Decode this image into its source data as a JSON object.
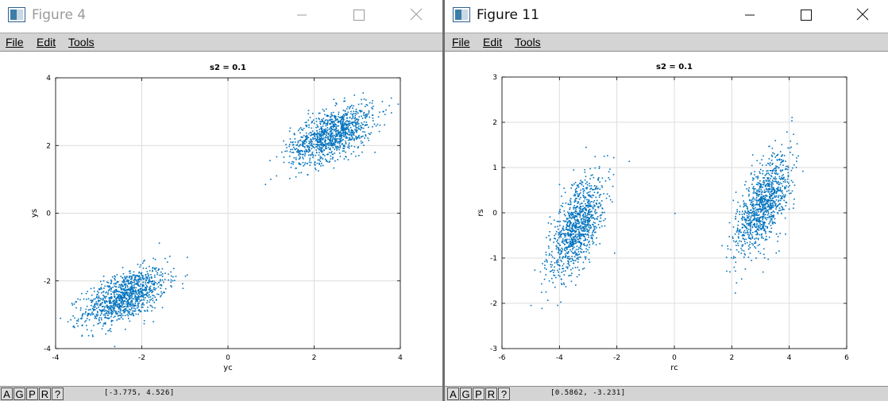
{
  "windows": [
    {
      "title": "Figure 4",
      "menu": [
        "File",
        "Edit",
        "Tools"
      ],
      "status": {
        "buttons": [
          "A",
          "G",
          "P",
          "R",
          "?"
        ],
        "coords": "[-3.775, 4.526]"
      },
      "chart_data": {
        "type": "scatter",
        "title": "s2 = 0.1",
        "xlabel": "yc",
        "ylabel": "ys",
        "xlim": [
          -4,
          4
        ],
        "ylim": [
          -4,
          4
        ],
        "xticks": [
          "-4",
          "-2",
          "0",
          "2",
          "4"
        ],
        "yticks": [
          "-4",
          "-2",
          "0",
          "2",
          "4"
        ],
        "grid": true,
        "color": "#0072bd",
        "clusters": [
          {
            "center_x": -2.4,
            "center_y": -2.45,
            "spread_x": 0.48,
            "spread_y": 0.42,
            "correlation": 0.55,
            "count": 1100
          },
          {
            "center_x": 2.4,
            "center_y": 2.35,
            "spread_x": 0.48,
            "spread_y": 0.42,
            "correlation": 0.55,
            "count": 1100
          }
        ]
      }
    },
    {
      "title": "Figure 11",
      "menu": [
        "File",
        "Edit",
        "Tools"
      ],
      "status": {
        "buttons": [
          "A",
          "G",
          "P",
          "R",
          "?"
        ],
        "coords": "[0.5862, -3.231]"
      },
      "chart_data": {
        "type": "scatter",
        "title": "s2 = 0.1",
        "xlabel": "rc",
        "ylabel": "rs",
        "xlim": [
          -6,
          6
        ],
        "ylim": [
          -3,
          3
        ],
        "xticks": [
          "-6",
          "-4",
          "-2",
          "0",
          "2",
          "4",
          "6"
        ],
        "yticks": [
          "-3",
          "-2",
          "-1",
          "0",
          "1",
          "2",
          "3"
        ],
        "grid": true,
        "color": "#0072bd",
        "clusters": [
          {
            "center_x": -3.4,
            "center_y": -0.3,
            "spread_x": 0.48,
            "spread_y": 0.55,
            "correlation": 0.6,
            "count": 1000
          },
          {
            "center_x": 3.05,
            "center_y": 0.2,
            "spread_x": 0.48,
            "spread_y": 0.55,
            "correlation": 0.6,
            "count": 1000
          }
        ],
        "outliers": [
          {
            "x": 0.0,
            "y": 0.0
          }
        ]
      }
    }
  ]
}
